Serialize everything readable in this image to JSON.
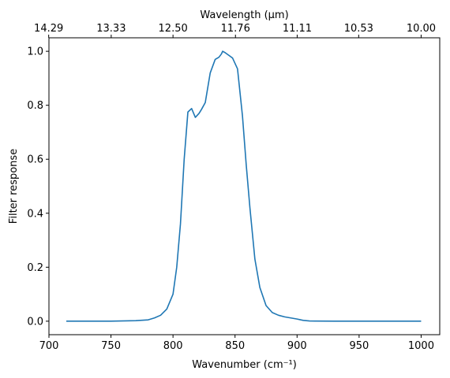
{
  "chart_data": {
    "type": "line",
    "xlabel": "Wavenumber (cm⁻¹)",
    "ylabel": "Filter response",
    "top_xlabel": "Wavelength (μm)",
    "xlim": [
      700,
      1015
    ],
    "ylim": [
      -0.05,
      1.05
    ],
    "grid": false,
    "x_ticks": [
      700,
      750,
      800,
      850,
      900,
      950,
      1000
    ],
    "y_ticks": [
      0.0,
      0.2,
      0.4,
      0.6,
      0.8,
      1.0
    ],
    "y_tick_labels": [
      "0.0",
      "0.2",
      "0.4",
      "0.6",
      "0.8",
      "1.0"
    ],
    "top_ticks": [
      {
        "wavelength_um": 14.29,
        "label": "14.29"
      },
      {
        "wavelength_um": 13.33,
        "label": "13.33"
      },
      {
        "wavelength_um": 12.5,
        "label": "12.50"
      },
      {
        "wavelength_um": 11.76,
        "label": "11.76"
      },
      {
        "wavelength_um": 11.11,
        "label": "11.11"
      },
      {
        "wavelength_um": 10.53,
        "label": "10.53"
      },
      {
        "wavelength_um": 10.0,
        "label": "10.00"
      }
    ],
    "series": [
      {
        "color": "#1f77b4",
        "x": [
          714,
          750,
          770,
          780,
          785,
          790,
          795,
          800,
          803,
          806,
          809,
          812,
          815,
          818,
          821,
          823,
          826,
          830,
          834,
          837,
          839,
          840,
          842,
          845,
          848,
          852,
          856,
          859,
          862,
          866,
          870,
          875,
          880,
          885,
          890,
          895,
          900,
          905,
          910,
          915,
          930,
          1000
        ],
        "y": [
          0.0,
          0.0,
          0.002,
          0.005,
          0.012,
          0.022,
          0.045,
          0.1,
          0.2,
          0.36,
          0.6,
          0.775,
          0.788,
          0.755,
          0.77,
          0.785,
          0.81,
          0.92,
          0.97,
          0.978,
          0.99,
          1.0,
          0.995,
          0.985,
          0.975,
          0.935,
          0.76,
          0.58,
          0.42,
          0.23,
          0.125,
          0.058,
          0.032,
          0.022,
          0.016,
          0.012,
          0.008,
          0.003,
          0.001,
          0.0005,
          0.0,
          0.0
        ]
      }
    ]
  }
}
